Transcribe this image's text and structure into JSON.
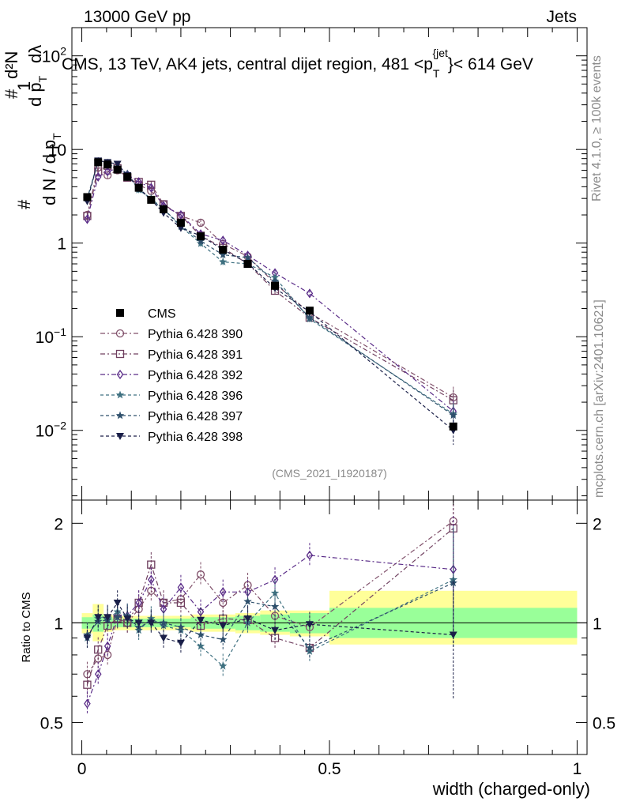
{
  "header": {
    "energy_label": "13000 GeV pp",
    "category_label": "Jets"
  },
  "side_text": {
    "rivet": "Rivet 4.1.0, ≥ 100k events",
    "mcplots": "mcplots.cern.ch [arXiv:2401.10621]"
  },
  "chart_data": [
    {
      "type": "line",
      "title": "CMS, 13 TeV, AK4 jets, central dijet region, 481 <p_T^{jet}< 614 GeV",
      "title_parts": {
        "pre": "CMS, 13 TeV, AK4 jets, central dijet region, 481 <p",
        "sub": "T",
        "sup": "{jet",
        "post": "}< 614 GeV"
      },
      "ylabel": "1/(dN/dp_T) d²N/(dp_T dλ)",
      "ylabel_parts": {
        "num_a": "1",
        "num_b": "d²N",
        "den_a": "d N / d p",
        "den_b": "d p",
        "den_c": "dλ",
        "sub": "T",
        "hash": "#"
      },
      "yscale": "log",
      "ylim": [
        0.0018,
        200
      ],
      "xlim": [
        -0.02,
        1.02
      ],
      "yticks": [
        {
          "value": 100,
          "base": "10",
          "exp": "2"
        },
        {
          "value": 10,
          "base": "10",
          "exp": ""
        },
        {
          "value": 1,
          "base": "1",
          "exp": ""
        },
        {
          "value": 0.1,
          "base": "10",
          "exp": "−1"
        },
        {
          "value": 0.01,
          "base": "10",
          "exp": "−2"
        }
      ],
      "analysis_label": "(CMS_2021_I1920187)",
      "legend_position": "middle-left",
      "x": [
        0.011,
        0.033,
        0.052,
        0.072,
        0.092,
        0.115,
        0.14,
        0.165,
        0.2,
        0.24,
        0.285,
        0.335,
        0.39,
        0.46,
        0.75
      ],
      "data": {
        "name": "CMS",
        "values": [
          3.1,
          7.3,
          6.9,
          6.1,
          5.1,
          3.9,
          2.9,
          2.3,
          1.65,
          1.18,
          0.85,
          0.6,
          0.35,
          0.19,
          0.011
        ]
      },
      "series": [
        {
          "name": "Pythia 6.428 390",
          "color": "#80506a",
          "marker": "circle-open",
          "dash": "6,3,2,3",
          "values": [
            2.0,
            6.4,
            5.3,
            6.0,
            5.1,
            4.2,
            3.6,
            2.6,
            1.95,
            1.65,
            0.98,
            0.72,
            0.37,
            0.18,
            0.0225
          ]
        },
        {
          "name": "Pythia 6.428 391",
          "color": "#704060",
          "marker": "square-open",
          "dash": "6,3,2,3",
          "values": [
            1.95,
            5.8,
            6.7,
            6.3,
            5.0,
            4.5,
            4.2,
            2.6,
            1.95,
            1.2,
            0.89,
            0.6,
            0.31,
            0.16,
            0.021
          ]
        },
        {
          "name": "Pythia 6.428 392",
          "color": "#5a2c88",
          "marker": "diamond-open",
          "dash": "6,3,2,3",
          "values": [
            1.8,
            5.1,
            5.8,
            6.3,
            5.4,
            4.5,
            3.9,
            2.5,
            2.0,
            1.25,
            1.07,
            0.74,
            0.48,
            0.29,
            0.016
          ]
        },
        {
          "name": "Pythia 6.428 396",
          "color": "#3e7080",
          "marker": "star",
          "dash": "4,3",
          "values": [
            3.0,
            7.5,
            7.2,
            6.5,
            5.5,
            3.7,
            3.0,
            2.3,
            1.5,
            0.99,
            0.63,
            0.6,
            0.43,
            0.155,
            0.015
          ]
        },
        {
          "name": "Pythia 6.428 397",
          "color": "#2e4f6b",
          "marker": "star",
          "dash": "4,3",
          "values": [
            3.0,
            7.4,
            7.0,
            6.3,
            5.4,
            3.8,
            2.9,
            2.3,
            1.55,
            1.05,
            0.75,
            0.7,
            0.39,
            0.16,
            0.0145
          ]
        },
        {
          "name": "Pythia 6.428 398",
          "color": "#1a1f48",
          "marker": "triangle-down",
          "dash": "4,3",
          "values": [
            2.8,
            7.6,
            7.3,
            7.0,
            5.3,
            3.9,
            2.9,
            2.1,
            1.45,
            1.2,
            0.85,
            0.61,
            0.33,
            0.185,
            0.01
          ]
        }
      ]
    },
    {
      "type": "line",
      "title": "",
      "ylabel": "Ratio to CMS",
      "xlabel": "width (charged-only)",
      "yscale": "log",
      "ylim": [
        0.4,
        2.35
      ],
      "xlim": [
        -0.02,
        1.02
      ],
      "yticks": [
        2,
        1,
        0.5
      ],
      "ytick_labels": [
        "2",
        "1",
        "0.5"
      ],
      "xticks": [
        0,
        0.5,
        1
      ],
      "xtick_labels": [
        "0",
        "0.5",
        "1"
      ],
      "x": [
        0.011,
        0.033,
        0.052,
        0.072,
        0.092,
        0.115,
        0.14,
        0.165,
        0.2,
        0.24,
        0.285,
        0.335,
        0.39,
        0.46,
        0.75
      ],
      "uncertainty_bands": {
        "edges": [
          0,
          0.022,
          0.044,
          0.062,
          0.082,
          0.102,
          0.127,
          0.152,
          0.18,
          0.22,
          0.26,
          0.31,
          0.36,
          0.42,
          0.5,
          1.0
        ],
        "stat_lo": [
          0.96,
          0.94,
          0.96,
          0.97,
          0.97,
          0.97,
          0.97,
          0.97,
          0.97,
          0.96,
          0.96,
          0.95,
          0.94,
          0.93,
          0.9
        ],
        "stat_hi": [
          1.04,
          1.06,
          1.04,
          1.03,
          1.03,
          1.03,
          1.03,
          1.03,
          1.03,
          1.04,
          1.04,
          1.05,
          1.06,
          1.07,
          1.11
        ],
        "total_lo": [
          0.93,
          0.88,
          0.94,
          0.95,
          0.95,
          0.95,
          0.95,
          0.95,
          0.95,
          0.94,
          0.94,
          0.93,
          0.92,
          0.91,
          0.86
        ],
        "total_hi": [
          1.07,
          1.14,
          1.06,
          1.05,
          1.05,
          1.05,
          1.05,
          1.05,
          1.05,
          1.06,
          1.06,
          1.07,
          1.09,
          1.09,
          1.25
        ],
        "stat_color": "#99ff99",
        "total_color": "#ffff99"
      },
      "series": [
        {
          "name": "Pythia 6.428 390",
          "color": "#80506a",
          "marker": "circle-open",
          "dash": "6,3,2,3",
          "values": [
            0.7,
            0.78,
            0.8,
            1.03,
            1.0,
            1.1,
            1.25,
            1.15,
            1.18,
            1.4,
            1.15,
            1.3,
            1.05,
            0.97,
            2.03
          ]
        },
        {
          "name": "Pythia 6.428 391",
          "color": "#704060",
          "marker": "square-open",
          "dash": "6,3,2,3",
          "values": [
            0.65,
            0.83,
            0.98,
            1.03,
            1.0,
            1.15,
            1.5,
            1.15,
            1.15,
            0.98,
            1.03,
            1.02,
            0.9,
            0.84,
            1.93
          ]
        },
        {
          "name": "Pythia 6.428 392",
          "color": "#5a2c88",
          "marker": "diamond-open",
          "dash": "6,3,2,3",
          "values": [
            0.57,
            0.7,
            0.85,
            1.05,
            1.05,
            1.15,
            1.35,
            1.1,
            1.28,
            1.08,
            1.24,
            1.24,
            1.35,
            1.6,
            1.45
          ]
        },
        {
          "name": "Pythia 6.428 396",
          "color": "#3e7080",
          "marker": "star",
          "dash": "4,3",
          "values": [
            0.9,
            1.03,
            1.03,
            1.08,
            1.05,
            0.95,
            1.03,
            0.98,
            0.95,
            0.85,
            0.74,
            1.0,
            1.23,
            0.82,
            1.35
          ]
        },
        {
          "name": "Pythia 6.428 397",
          "color": "#2e4f6b",
          "marker": "star",
          "dash": "4,3",
          "values": [
            0.92,
            1.01,
            1.02,
            1.04,
            1.04,
            0.97,
            1.01,
            1.0,
            0.97,
            0.92,
            0.89,
            1.16,
            1.12,
            0.84,
            1.32
          ]
        },
        {
          "name": "Pythia 6.428 398",
          "color": "#1a1f48",
          "marker": "triangle-down",
          "dash": "4,3",
          "values": [
            0.9,
            1.04,
            1.04,
            1.15,
            1.03,
            1.0,
            1.0,
            0.9,
            0.87,
            1.02,
            0.98,
            1.03,
            0.95,
            0.99,
            0.92
          ]
        }
      ]
    }
  ]
}
